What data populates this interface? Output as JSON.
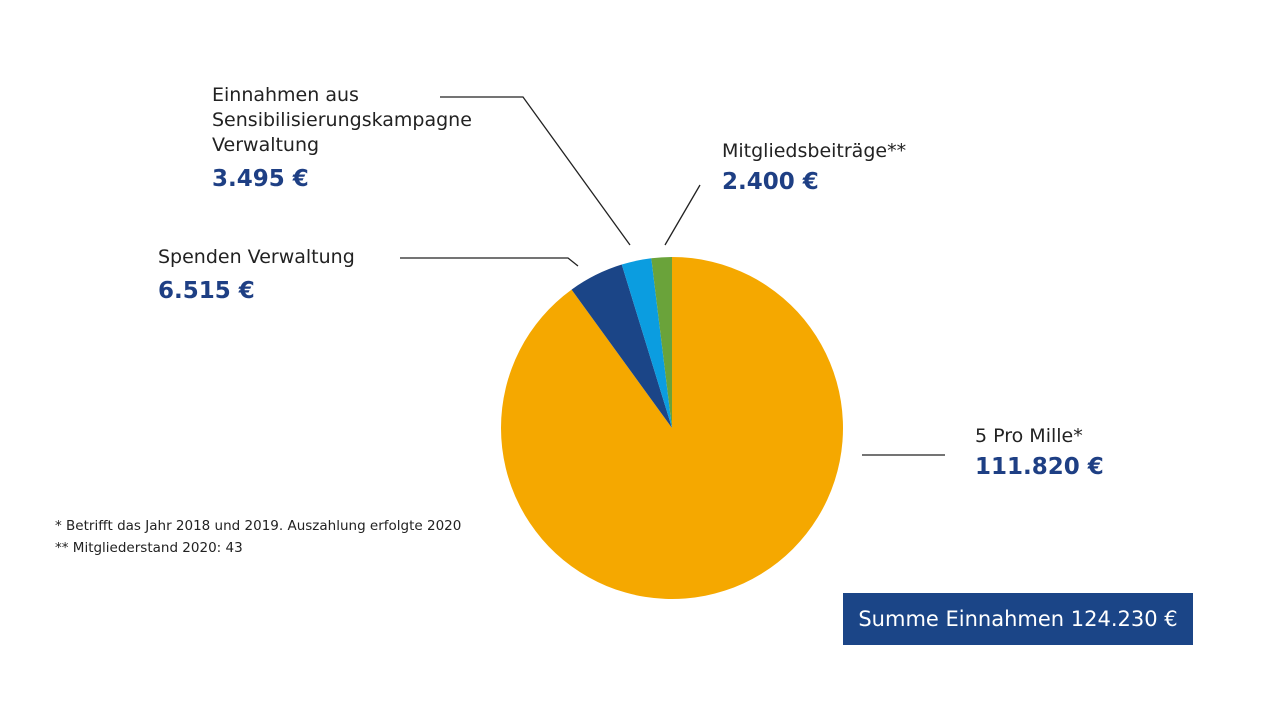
{
  "chart_data": {
    "type": "pie",
    "categories": [
      "5 Pro Mille*",
      "Spenden Verwaltung",
      "Einnahmen aus Sensibilisierungskampagne Verwaltung",
      "Mitgliedsbeiträge**"
    ],
    "values": [
      111820,
      6515,
      3495,
      2400
    ],
    "value_labels": [
      "111.820 €",
      "6.515 €",
      "3.495 €",
      "2.400 €"
    ],
    "colors": [
      "#f5a800",
      "#1b4587",
      "#0b9de0",
      "#6aa33a"
    ],
    "total_label": "Summe Einnahmen 124.230  €",
    "footnotes": [
      "* Betrifft das Jahr 2018 und 2019. Auszahlung erfolgte 2020",
      "** Mitgliederstand 2020: 43"
    ]
  }
}
